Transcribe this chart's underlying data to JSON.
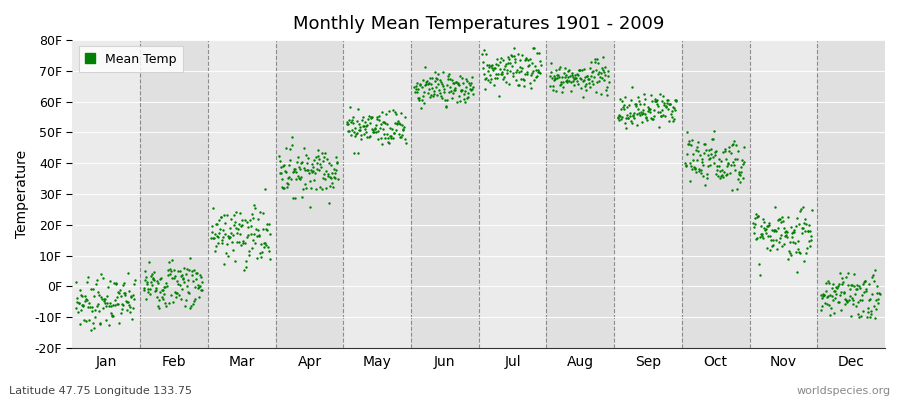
{
  "title": "Monthly Mean Temperatures 1901 - 2009",
  "ylabel": "Temperature",
  "footer_left": "Latitude 47.75 Longitude 133.75",
  "footer_right": "worldspecies.org",
  "legend_label": "Mean Temp",
  "dot_color": "#008000",
  "bg_colors": [
    "#ebebeb",
    "#e0e0e0"
  ],
  "ylim": [
    -20,
    80
  ],
  "yticks": [
    -20,
    -10,
    0,
    10,
    20,
    30,
    40,
    50,
    60,
    70,
    80
  ],
  "ytick_labels": [
    "-20F",
    "-10F",
    "0F",
    "10F",
    "20F",
    "30F",
    "40F",
    "50F",
    "60F",
    "70F",
    "80F"
  ],
  "months": [
    "Jan",
    "Feb",
    "Mar",
    "Apr",
    "May",
    "Jun",
    "Jul",
    "Aug",
    "Sep",
    "Oct",
    "Nov",
    "Dec"
  ],
  "month_means_F": [
    -5,
    1,
    17,
    38,
    52,
    64,
    71,
    68,
    57,
    41,
    17,
    -3
  ],
  "month_stds_F": [
    4,
    4,
    5,
    4,
    3,
    3,
    3,
    3,
    3,
    4,
    4,
    4
  ],
  "month_trend_F": [
    0.5,
    0.5,
    0.5,
    0.5,
    0.5,
    0.5,
    0.5,
    0.5,
    0.5,
    0.5,
    0.5,
    0.5
  ],
  "n_years": 109,
  "start_year": 1901,
  "end_year": 2009,
  "dot_size": 3,
  "dot_marker": "o",
  "figsize": [
    9.0,
    4.0
  ],
  "dpi": 100
}
